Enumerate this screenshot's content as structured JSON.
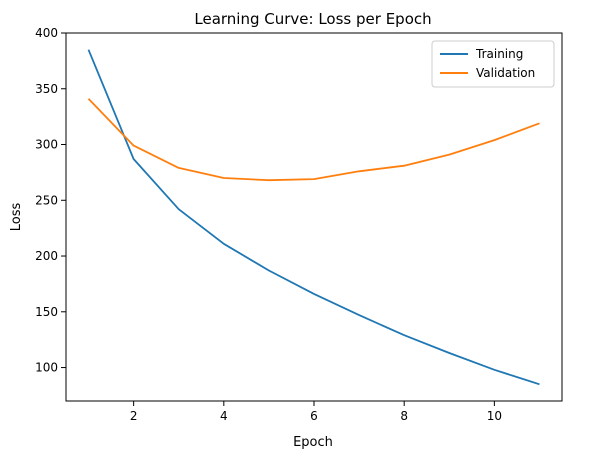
{
  "chart_data": {
    "type": "line",
    "title": "Learning Curve: Loss per Epoch",
    "xlabel": "Epoch",
    "ylabel": "Loss",
    "x": [
      1,
      2,
      3,
      4,
      5,
      6,
      7,
      8,
      9,
      10,
      11
    ],
    "xlim": [
      0.5,
      11.5
    ],
    "ylim": [
      70,
      400
    ],
    "xticks": [
      2,
      4,
      6,
      8,
      10
    ],
    "yticks": [
      100,
      150,
      200,
      250,
      300,
      350,
      400
    ],
    "grid": false,
    "legend": "top-right",
    "series": [
      {
        "name": "Training",
        "color": "#1f77b4",
        "values": [
          385,
          287,
          242,
          211,
          187,
          166,
          147,
          129,
          113,
          98,
          85
        ]
      },
      {
        "name": "Validation",
        "color": "#ff7f0e",
        "values": [
          341,
          299,
          279,
          270,
          268,
          269,
          276,
          281,
          291,
          304,
          319
        ]
      }
    ]
  }
}
